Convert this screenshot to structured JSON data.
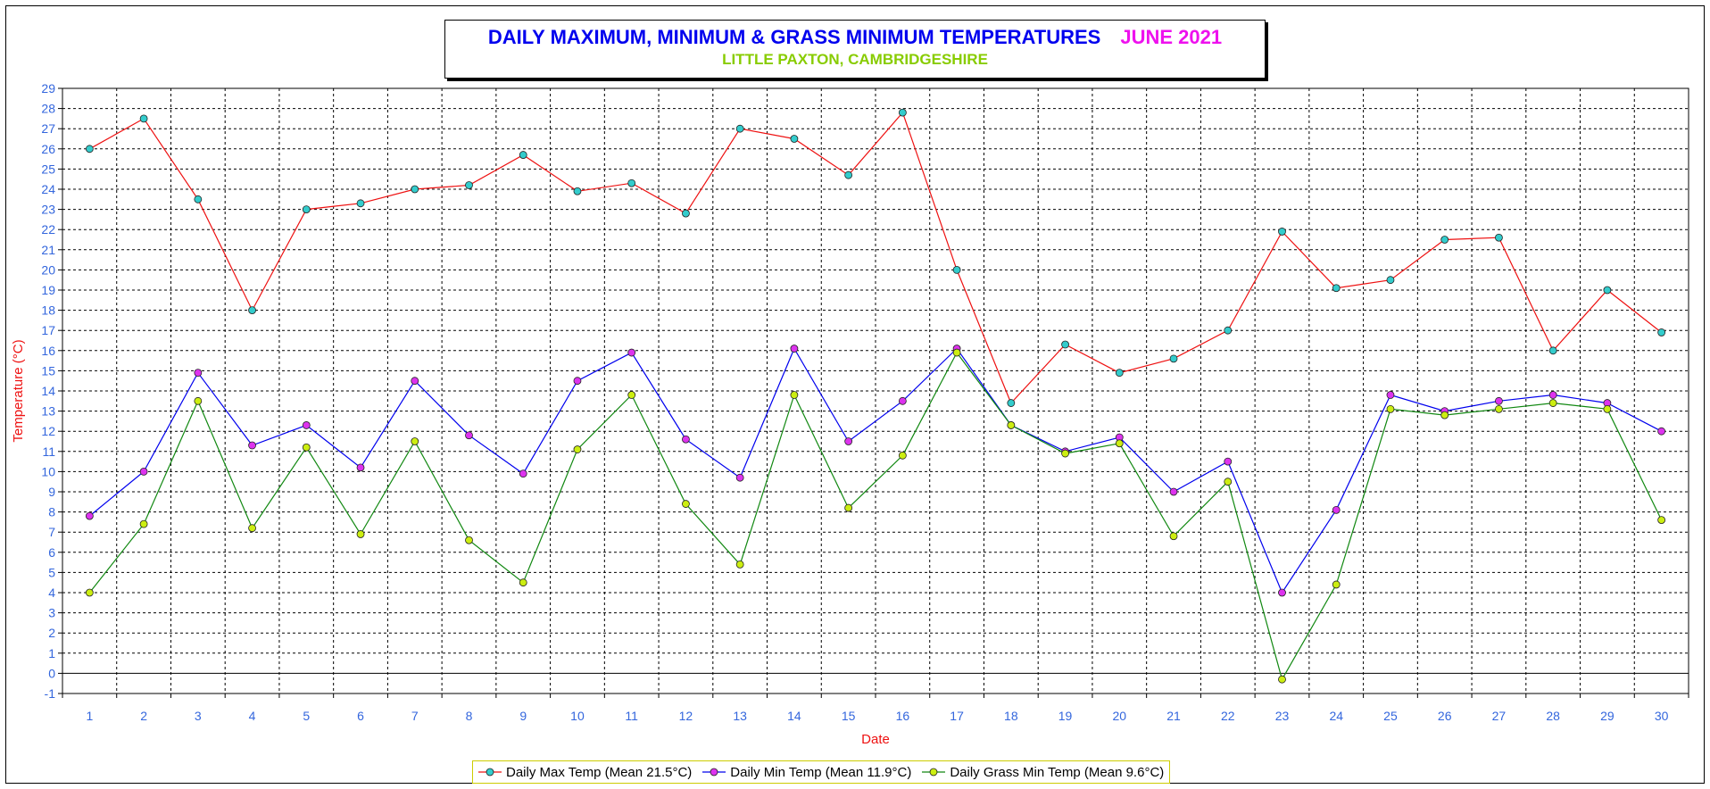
{
  "colors": {
    "max": "#ee1111",
    "min": "#0000ee",
    "grass": "#118811",
    "max_marker": "#33cccc",
    "min_marker": "#dd33ee",
    "grass_marker": "#ccee11",
    "axis_label": "#ee1111",
    "tick_label": "#3366dd"
  },
  "chart_data": {
    "type": "line",
    "title": "DAILY MAXIMUM, MINIMUM & GRASS MINIMUM TEMPERATURES",
    "title_month": "JUNE 2021",
    "subtitle": "LITTLE PAXTON, CAMBRIDGESHIRE",
    "xlabel": "Date",
    "ylabel": "Temperature (°C)",
    "x": [
      1,
      2,
      3,
      4,
      5,
      6,
      7,
      8,
      9,
      10,
      11,
      12,
      13,
      14,
      15,
      16,
      17,
      18,
      19,
      20,
      21,
      22,
      23,
      24,
      25,
      26,
      27,
      28,
      29,
      30
    ],
    "ylim": [
      -1,
      29
    ],
    "yticks": [
      -1,
      0,
      1,
      2,
      3,
      4,
      5,
      6,
      7,
      8,
      9,
      10,
      11,
      12,
      13,
      14,
      15,
      16,
      17,
      18,
      19,
      20,
      21,
      22,
      23,
      24,
      25,
      26,
      27,
      28,
      29
    ],
    "grid": true,
    "legend_position": "bottom-center",
    "series": [
      {
        "name": "Daily Max Temp (Mean 21.5°C)",
        "key": "max",
        "values": [
          26.0,
          27.5,
          23.5,
          18.0,
          23.0,
          23.3,
          24.0,
          24.2,
          25.7,
          23.9,
          24.3,
          22.8,
          27.0,
          26.5,
          24.7,
          27.8,
          20.0,
          13.4,
          16.3,
          14.9,
          15.6,
          17.0,
          21.9,
          19.1,
          19.5,
          21.5,
          21.6,
          16.0,
          19.0,
          16.9
        ]
      },
      {
        "name": "Daily Min Temp (Mean 11.9°C)",
        "key": "min",
        "values": [
          7.8,
          10.0,
          14.9,
          11.3,
          12.3,
          10.2,
          14.5,
          11.8,
          9.9,
          14.5,
          15.9,
          11.6,
          9.7,
          16.1,
          11.5,
          13.5,
          16.1,
          12.3,
          11.0,
          11.7,
          9.0,
          10.5,
          4.0,
          8.1,
          13.8,
          13.0,
          13.5,
          13.8,
          13.4,
          12.0
        ]
      },
      {
        "name": "Daily Grass Min Temp (Mean 9.6°C)",
        "key": "grass",
        "values": [
          4.0,
          7.4,
          13.5,
          7.2,
          11.2,
          6.9,
          11.5,
          6.6,
          4.5,
          11.1,
          13.8,
          8.4,
          5.4,
          13.8,
          8.2,
          10.8,
          15.9,
          12.3,
          10.9,
          11.4,
          6.8,
          9.5,
          -0.3,
          4.4,
          13.1,
          12.8,
          13.1,
          13.4,
          13.1,
          7.6
        ]
      }
    ]
  }
}
